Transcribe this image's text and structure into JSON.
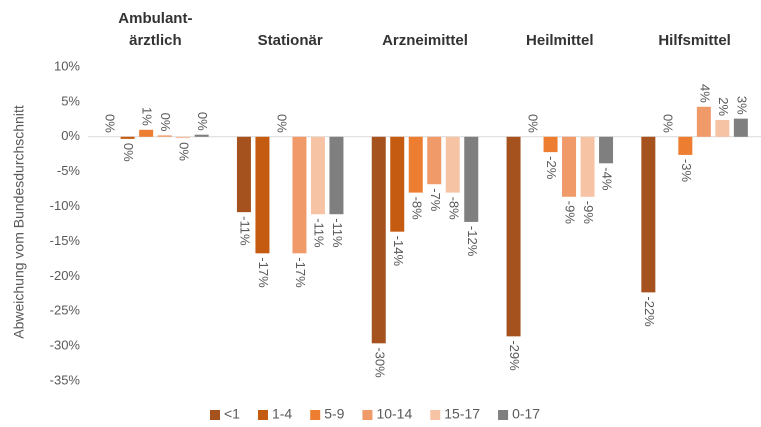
{
  "chart_data": {
    "type": "bar",
    "y_label": "Abweichung vom Bundesdurchschnitt",
    "categories": [
      "Ambulant-\närztlich",
      "Stationär",
      "Arzneimittel",
      "Heilmittel",
      "Hilfsmittel"
    ],
    "series": [
      {
        "name": "<1",
        "color": "#a5521e",
        "values": [
          0,
          -10.8,
          -29.6,
          -28.6,
          -22.3
        ],
        "value_labels": [
          "0%",
          "-11%",
          "-30%",
          "-29%",
          "-22%"
        ]
      },
      {
        "name": "1-4",
        "color": "#c55a11",
        "values": [
          -0.3,
          -16.7,
          -13.6,
          0,
          0
        ],
        "value_labels": [
          "0%",
          "-17%",
          "-14%",
          "0%",
          "0%"
        ]
      },
      {
        "name": "5-9",
        "color": "#ed7d31",
        "values": [
          1.0,
          0,
          -8.0,
          -2.2,
          -2.6
        ],
        "value_labels": [
          "1%",
          "0%",
          "-8%",
          "-2%",
          "-3%"
        ]
      },
      {
        "name": "10-14",
        "color": "#f09a6a",
        "values": [
          0.2,
          -16.7,
          -6.8,
          -8.6,
          4.3
        ],
        "value_labels": [
          "0%",
          "-17%",
          "-7%",
          "-9%",
          "4%"
        ]
      },
      {
        "name": "15-17",
        "color": "#f7c3a5",
        "values": [
          -0.2,
          -11.1,
          -8.0,
          -8.6,
          2.4
        ],
        "value_labels": [
          "0%",
          "-11%",
          "-8%",
          "-9%",
          "2%"
        ]
      },
      {
        "name": "0-17",
        "color": "#7f7f7f",
        "values": [
          0.3,
          -11.1,
          -12.2,
          -3.8,
          2.6
        ],
        "value_labels": [
          "0%",
          "-11%",
          "-12%",
          "-4%",
          "3%"
        ]
      }
    ],
    "ylim": [
      -35,
      10
    ],
    "yticks": [
      {
        "value": 10,
        "label": "10%"
      },
      {
        "value": 5,
        "label": "5%"
      },
      {
        "value": 0,
        "label": "0%"
      },
      {
        "value": -5,
        "label": "-5%"
      },
      {
        "value": -10,
        "label": "-10%"
      },
      {
        "value": -15,
        "label": "-15%"
      },
      {
        "value": -20,
        "label": "-20%"
      },
      {
        "value": -25,
        "label": "-25%"
      },
      {
        "value": -30,
        "label": "-30%"
      },
      {
        "value": -35,
        "label": "-35%"
      }
    ],
    "legend": "bottom"
  }
}
